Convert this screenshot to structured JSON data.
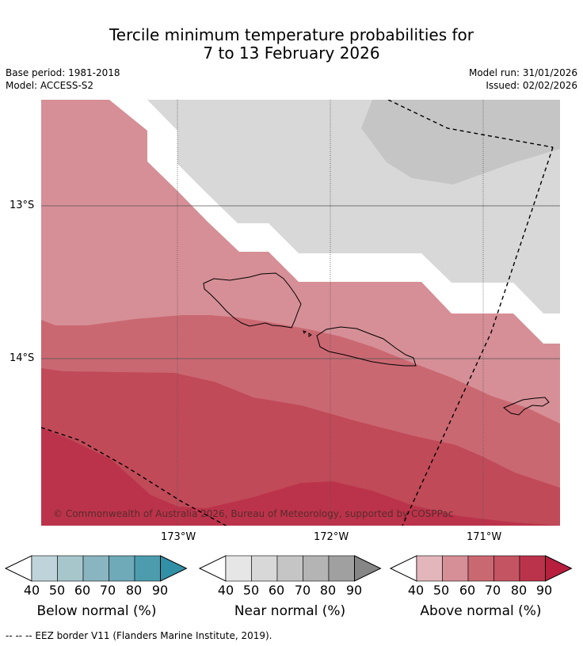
{
  "header": {
    "title_line1": "Tercile minimum temperature probabilities for",
    "title_line2": "7 to 13 February 2026",
    "base_period": "Base period: 1981-2018",
    "model": "Model: ACCESS-S2",
    "model_run": "Model run: 31/01/2026",
    "issued": "Issued: 02/02/2026"
  },
  "map": {
    "lat_labels": [
      "13°S",
      "14°S"
    ],
    "lon_labels": [
      "173°W",
      "172°W",
      "171°W"
    ],
    "copyright": "© Commonwealth of Australia 2026, Bureau of Meteorology, supported by COSPPac",
    "colors": {
      "near_60": "#d8d8d8",
      "near_70": "#c5c5c5",
      "above_50": "#d68f96",
      "above_60": "#ca6872",
      "above_70": "#c04a58",
      "above_80": "#bb334a"
    }
  },
  "colorbars": [
    {
      "title": "Below normal (%)",
      "ticks": [
        "40",
        "50",
        "60",
        "70",
        "80",
        "90"
      ],
      "colors": [
        "#bfd4da",
        "#a6c6cc",
        "#89b5c0",
        "#6eaab8",
        "#4c9cae",
        "#3190a6"
      ]
    },
    {
      "title": "Near normal (%)",
      "ticks": [
        "40",
        "50",
        "60",
        "70",
        "80",
        "90"
      ],
      "colors": [
        "#e6e6e6",
        "#d8d8d8",
        "#c5c5c5",
        "#b4b4b4",
        "#a0a0a0",
        "#868686"
      ]
    },
    {
      "title": "Above normal (%)",
      "ticks": [
        "40",
        "50",
        "60",
        "70",
        "80",
        "90"
      ],
      "colors": [
        "#e2b6bb",
        "#d68f96",
        "#ca6872",
        "#c55462",
        "#bb334a",
        "#b81e3e"
      ]
    }
  ],
  "footer": {
    "eez_note": "--  --  -- EEZ border V11 (Flanders Marine Institute, 2019)."
  }
}
